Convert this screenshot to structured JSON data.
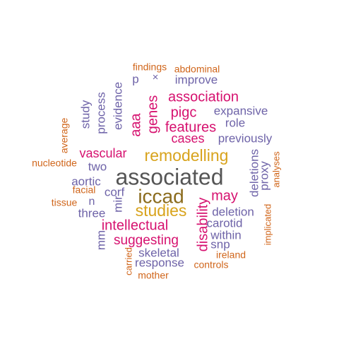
{
  "palette": {
    "gray": "#555555",
    "brown": "#8B6C1E",
    "gold": "#D8A31C",
    "magenta": "#D6116F",
    "purple": "#6E63A8",
    "orange": "#D0651A",
    "background": "#FFFFFF"
  },
  "words": [
    {
      "text": "associated",
      "color": "gray"
    },
    {
      "text": "iccad",
      "color": "brown"
    },
    {
      "text": "remodelling",
      "color": "gold"
    },
    {
      "text": "studies",
      "color": "gold"
    },
    {
      "text": "association",
      "color": "magenta"
    },
    {
      "text": "pigc",
      "color": "magenta"
    },
    {
      "text": "features",
      "color": "magenta"
    },
    {
      "text": "cases",
      "color": "magenta"
    },
    {
      "text": "vascular",
      "color": "magenta"
    },
    {
      "text": "may",
      "color": "magenta"
    },
    {
      "text": "intellectual",
      "color": "magenta"
    },
    {
      "text": "suggesting",
      "color": "magenta"
    },
    {
      "text": "genes",
      "color": "magenta"
    },
    {
      "text": "aaa",
      "color": "magenta"
    },
    {
      "text": "disability",
      "color": "magenta"
    },
    {
      "text": "expansive",
      "color": "purple"
    },
    {
      "text": "role",
      "color": "purple"
    },
    {
      "text": "previously",
      "color": "purple"
    },
    {
      "text": "improve",
      "color": "purple"
    },
    {
      "text": "p",
      "color": "purple"
    },
    {
      "text": "×",
      "color": "purple"
    },
    {
      "text": "evidence",
      "color": "purple"
    },
    {
      "text": "process",
      "color": "purple"
    },
    {
      "text": "study",
      "color": "purple"
    },
    {
      "text": "two",
      "color": "purple"
    },
    {
      "text": "aortic",
      "color": "purple"
    },
    {
      "text": "corf",
      "color": "purple"
    },
    {
      "text": "n",
      "color": "purple"
    },
    {
      "text": "three",
      "color": "purple"
    },
    {
      "text": "mir",
      "color": "purple"
    },
    {
      "text": "mm",
      "color": "purple"
    },
    {
      "text": "deletion",
      "color": "purple"
    },
    {
      "text": "carotid",
      "color": "purple"
    },
    {
      "text": "within",
      "color": "purple"
    },
    {
      "text": "snp",
      "color": "purple"
    },
    {
      "text": "skeletal",
      "color": "purple"
    },
    {
      "text": "response",
      "color": "purple"
    },
    {
      "text": "deletions",
      "color": "purple"
    },
    {
      "text": "proxy",
      "color": "purple"
    },
    {
      "text": "findings",
      "color": "orange"
    },
    {
      "text": "abdominal",
      "color": "orange"
    },
    {
      "text": "average",
      "color": "orange"
    },
    {
      "text": "nucleotide",
      "color": "orange"
    },
    {
      "text": "facial",
      "color": "orange"
    },
    {
      "text": "tissue",
      "color": "orange"
    },
    {
      "text": "analyses",
      "color": "orange"
    },
    {
      "text": "implicated",
      "color": "orange"
    },
    {
      "text": "ireland",
      "color": "orange"
    },
    {
      "text": "controls",
      "color": "orange"
    },
    {
      "text": "carried",
      "color": "orange"
    },
    {
      "text": "mother",
      "color": "orange"
    }
  ]
}
